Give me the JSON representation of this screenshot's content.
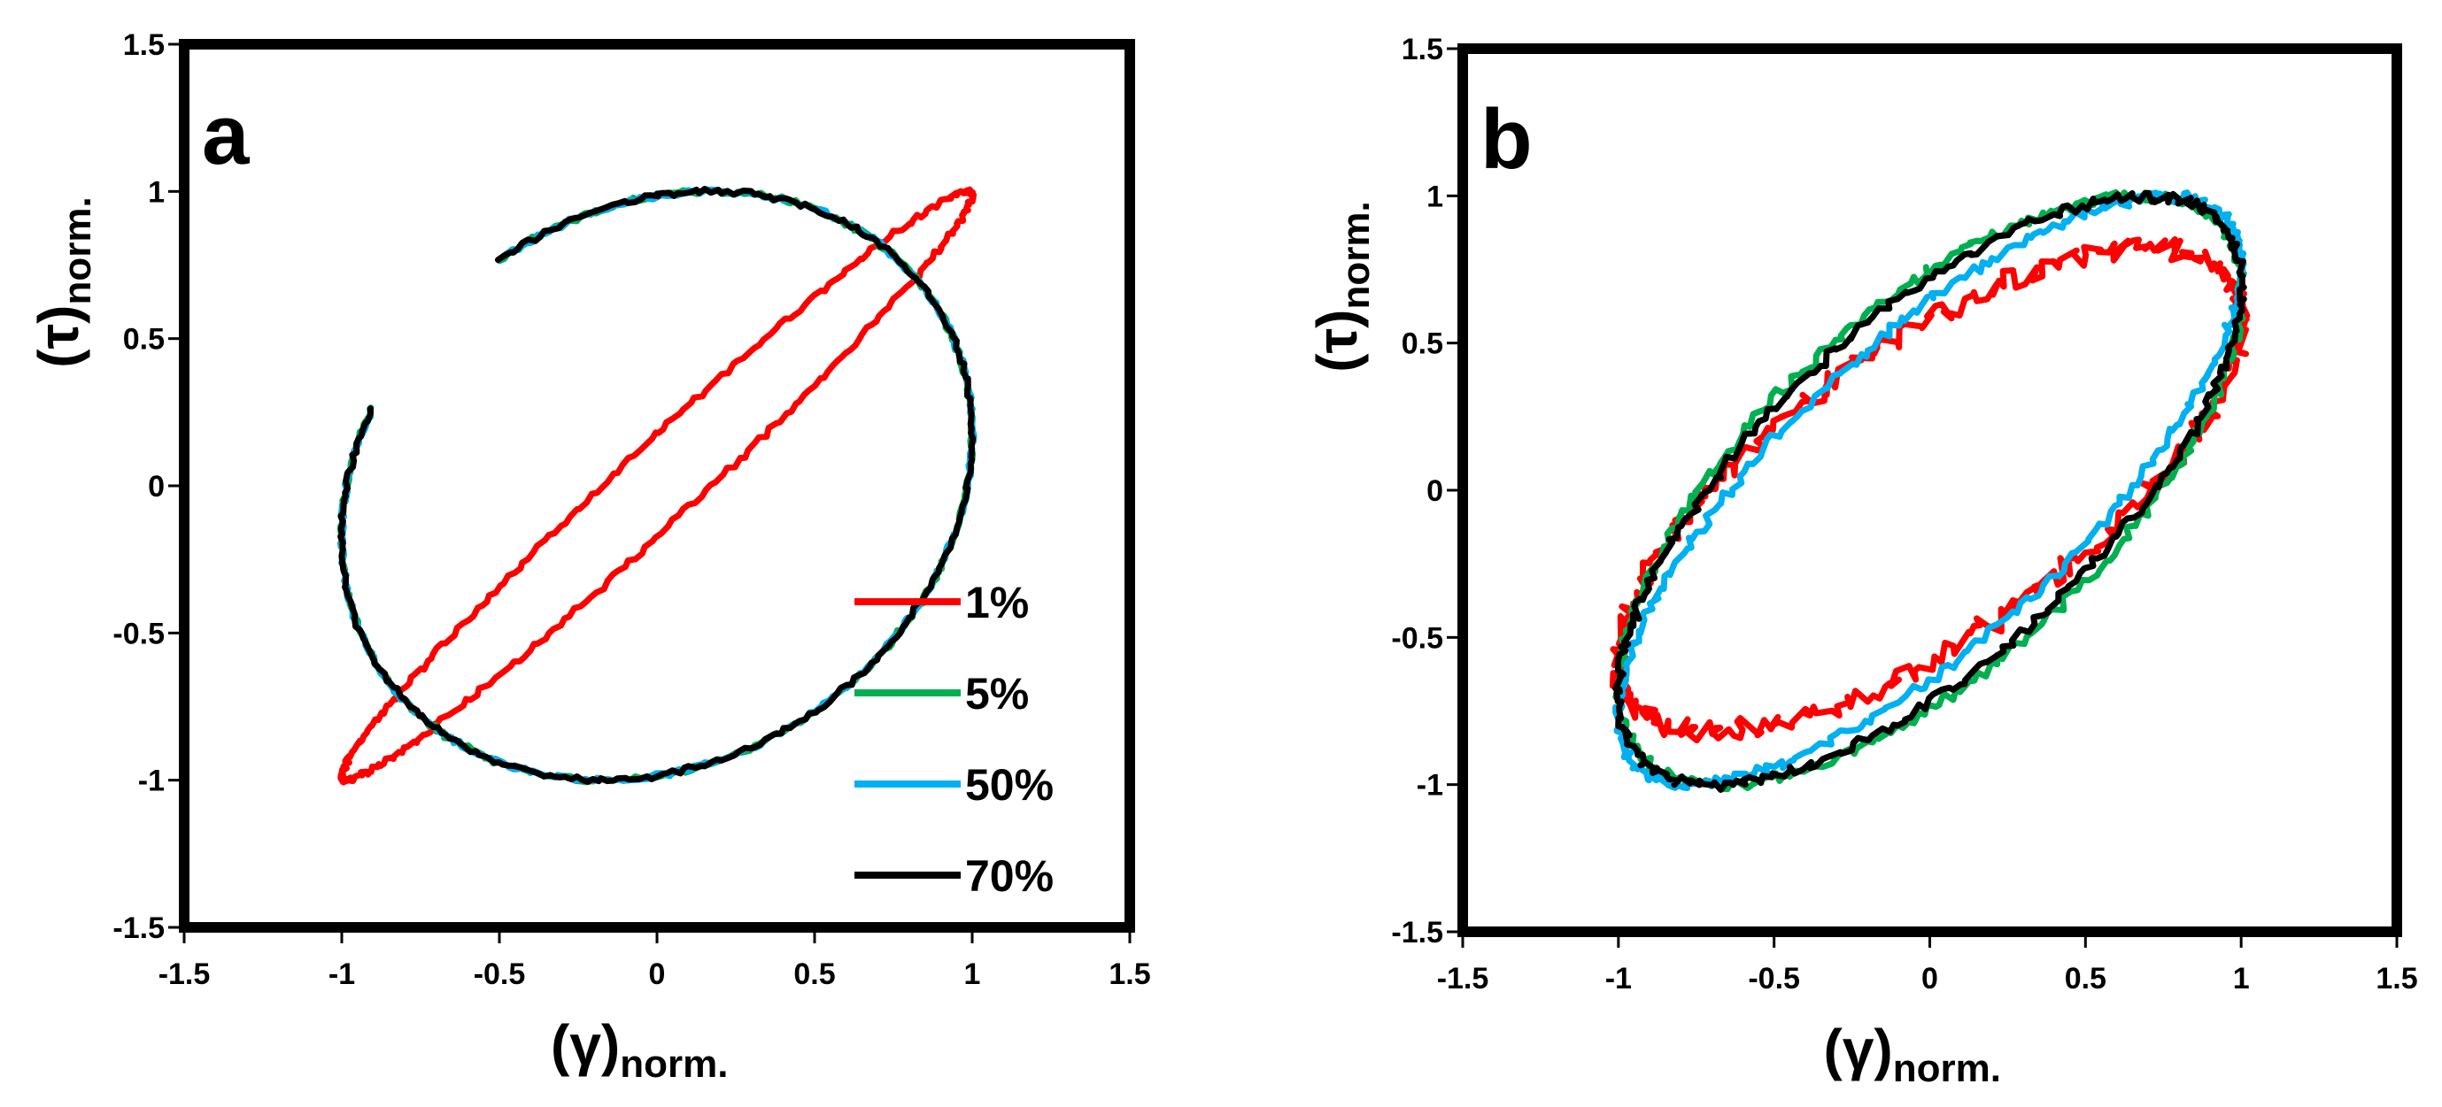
{
  "chart_data": [
    {
      "type": "line",
      "panel_label": "a",
      "xlabel": "(γ)",
      "xlabel_sub": "norm.",
      "ylabel": "(τ)",
      "ylabel_sub": "norm.",
      "xlim": [
        -1.5,
        1.5
      ],
      "ylim": [
        -1.5,
        1.5
      ],
      "xticks": [
        "-1.5",
        "-1",
        "-0.5",
        "0",
        "0.5",
        "1",
        "1.5"
      ],
      "yticks": [
        "1.5",
        "1",
        "0.5",
        "0",
        "-0.5",
        "-1",
        "-1.5"
      ],
      "legend_position": "bottom-right",
      "series": [
        {
          "name": "1%",
          "color": "#ff0000",
          "shape": "ellipse",
          "phase_deg": 10,
          "noise": 0.006
        },
        {
          "name": "5%",
          "color": "#00b050",
          "shape": "circle",
          "phase_deg": 80,
          "noise": 0.006
        },
        {
          "name": "50%",
          "color": "#00b0f0",
          "shape": "circle",
          "phase_deg": 80,
          "noise": 0.006
        },
        {
          "name": "70%",
          "color": "#000000",
          "shape": "circle",
          "phase_deg": 80,
          "noise": 0.006
        }
      ],
      "legend": [
        {
          "label": "1%",
          "color": "#ff0000"
        },
        {
          "label": "5%",
          "color": "#00b050"
        },
        {
          "label": "50%",
          "color": "#00b0f0"
        },
        {
          "label": "70%",
          "color": "#000000"
        }
      ]
    },
    {
      "type": "line",
      "panel_label": "b",
      "xlabel": "(γ)",
      "xlabel_sub": "norm.",
      "ylabel": "(τ)",
      "ylabel_sub": "norm.",
      "xlim": [
        -1.5,
        1.5
      ],
      "ylim": [
        -1.5,
        1.5
      ],
      "xticks": [
        "-1.5",
        "-1",
        "-0.5",
        "0",
        "0.5",
        "1",
        "1.5"
      ],
      "yticks": [
        "1.5",
        "1",
        "0.5",
        "0",
        "-0.5",
        "-1",
        "-1.5"
      ],
      "series": [
        {
          "name": "1%",
          "color": "#ff0000",
          "shape": "ellipse",
          "phase_deg": 45,
          "amp": 0.82,
          "noise": 0.025
        },
        {
          "name": "5%",
          "color": "#00b050",
          "shape": "ellipse",
          "phase_deg": 48,
          "amp": 1.0,
          "noise": 0.012
        },
        {
          "name": "50%",
          "color": "#00b0f0",
          "shape": "ellipse",
          "phase_deg": 40,
          "amp": 1.0,
          "noise": 0.012
        },
        {
          "name": "70%",
          "color": "#000000",
          "shape": "ellipse",
          "phase_deg": 46,
          "amp": 1.0,
          "noise": 0.012
        }
      ]
    }
  ]
}
